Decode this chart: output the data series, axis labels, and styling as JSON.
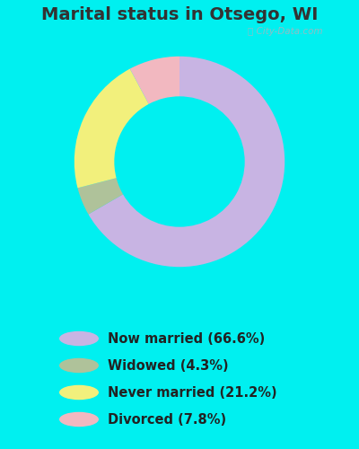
{
  "title": "Marital status in Otsego, WI",
  "slices": [
    66.6,
    4.3,
    21.2,
    7.8
  ],
  "labels": [
    "Now married (66.6%)",
    "Widowed (4.3%)",
    "Never married (21.2%)",
    "Divorced (7.8%)"
  ],
  "colors": [
    "#c8b4e3",
    "#afc29a",
    "#f2f07c",
    "#f2b8c0"
  ],
  "bg_outer": "#00f0f0",
  "bg_chart": "#c8e8d0",
  "watermark": "City-Data.com",
  "title_fontsize": 14,
  "legend_fontsize": 10.5,
  "title_color": "#333333",
  "legend_text_color": "#222222"
}
